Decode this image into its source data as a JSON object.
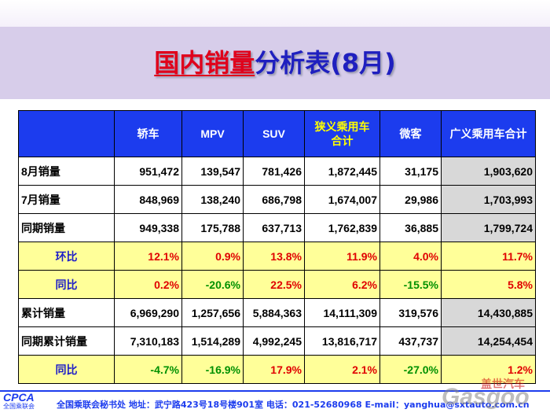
{
  "title": {
    "part1": "国内销量",
    "part2": "分析表(8月)"
  },
  "table": {
    "headers": [
      {
        "text": "",
        "yellow": false
      },
      {
        "text": "轿车",
        "yellow": false
      },
      {
        "text": "MPV",
        "yellow": false
      },
      {
        "text": "SUV",
        "yellow": false
      },
      {
        "text": "狭义乘用车\n合计",
        "yellow": true
      },
      {
        "text": "微客",
        "yellow": false
      },
      {
        "text": "广义乘用车合计",
        "yellow": false
      }
    ],
    "rows": [
      {
        "label": "8月销量",
        "style": "white",
        "values": [
          "951,472",
          "139,547",
          "781,426",
          "1,872,445",
          "31,175",
          "1,903,620"
        ]
      },
      {
        "label": "7月销量",
        "style": "white",
        "values": [
          "848,969",
          "138,240",
          "686,798",
          "1,674,007",
          "29,986",
          "1,703,993"
        ]
      },
      {
        "label": "同期销量",
        "style": "white",
        "values": [
          "949,338",
          "175,788",
          "637,713",
          "1,762,839",
          "36,885",
          "1,799,724"
        ]
      },
      {
        "label": "环比",
        "style": "yellow",
        "values": [
          "12.1%",
          "0.9%",
          "13.8%",
          "11.9%",
          "4.0%",
          "11.7%"
        ]
      },
      {
        "label": "同比",
        "style": "yellow",
        "values": [
          "0.2%",
          "-20.6%",
          "22.5%",
          "6.2%",
          "-15.5%",
          "5.8%"
        ]
      },
      {
        "label": "累计销量",
        "style": "white",
        "values": [
          "6,969,290",
          "1,257,656",
          "5,884,363",
          "14,111,309",
          "319,576",
          "14,430,885"
        ]
      },
      {
        "label": "同期累计销量",
        "style": "white",
        "values": [
          "7,310,183",
          "1,514,289",
          "4,992,245",
          "13,816,717",
          "437,737",
          "14,254,454"
        ]
      },
      {
        "label": "同比",
        "style": "yellow",
        "values": [
          "-4.7%",
          "-16.9%",
          "17.9%",
          "2.1%",
          "-27.0%",
          "1.2%"
        ]
      }
    ]
  },
  "footer": {
    "logo": "CPCA",
    "logo_cn": "全国乘联会",
    "text": "全国乘联会秘书处  地址：武宁路423号18号楼901室    电话：021-52680968   E-mail：yanghua@sxtauto.com.cn"
  },
  "watermark": {
    "cn": "盖世汽车",
    "en": "Gasgoo"
  },
  "colors": {
    "header_bg": "#1c3cee",
    "highlight_row": "#ffff99",
    "positive": "#e00000",
    "negative": "#009000",
    "title_red": "#e0001b",
    "title_blue": "#1f1fbf"
  }
}
